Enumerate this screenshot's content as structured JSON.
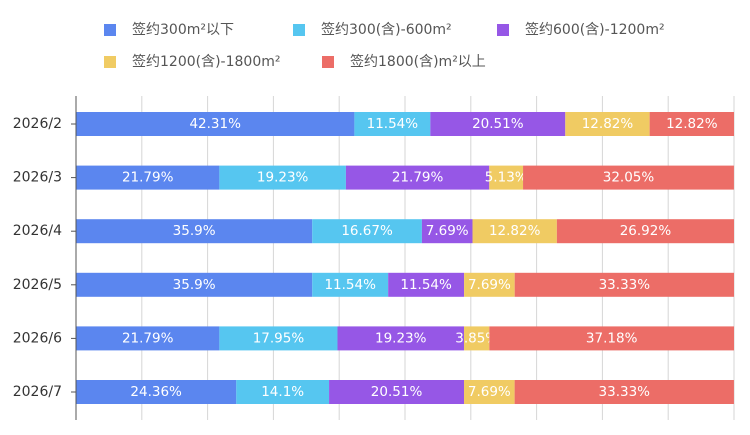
{
  "chart_data": {
    "type": "bar",
    "orientation": "horizontal",
    "stacked": true,
    "categories": [
      "2026/2",
      "2026/3",
      "2026/4",
      "2026/5",
      "2026/6",
      "2026/7"
    ],
    "series": [
      {
        "name": "签约300m²以下",
        "color": "#5b86ef",
        "values": [
          42.31,
          21.79,
          35.9,
          35.9,
          21.79,
          24.36
        ],
        "labels": [
          "42.31%",
          "21.79%",
          "35.9%",
          "35.9%",
          "21.79%",
          "24.36%"
        ]
      },
      {
        "name": "签约300(含)-600m²",
        "color": "#56c6f0",
        "values": [
          11.54,
          19.23,
          16.67,
          11.54,
          17.95,
          14.1
        ],
        "labels": [
          "11.54%",
          "19.23%",
          "16.67%",
          "11.54%",
          "17.95%",
          "14.1%"
        ]
      },
      {
        "name": "签约600(含)-1200m²",
        "color": "#9657e6",
        "values": [
          20.51,
          21.79,
          7.69,
          11.54,
          19.23,
          20.51
        ],
        "labels": [
          "20.51%",
          "21.79%",
          "7.69%",
          "11.54%",
          "19.23%",
          "20.51%"
        ]
      },
      {
        "name": "签约1200(含)-1800m²",
        "color": "#f0cb63",
        "values": [
          12.82,
          5.13,
          12.82,
          7.69,
          3.85,
          7.69
        ],
        "labels": [
          "12.82%",
          "5.13%",
          "12.82%",
          "7.69%",
          "3.85%",
          "7.69%"
        ]
      },
      {
        "name": "签约1800(含)m²以上",
        "color": "#ec6d67",
        "values": [
          12.82,
          32.05,
          26.92,
          33.33,
          37.18,
          33.33
        ],
        "labels": [
          "12.82%",
          "32.05%",
          "26.92%",
          "33.33%",
          "37.18%",
          "33.33%"
        ]
      }
    ],
    "xlim": [
      0,
      100
    ],
    "grid": true,
    "legend_position": "top"
  }
}
